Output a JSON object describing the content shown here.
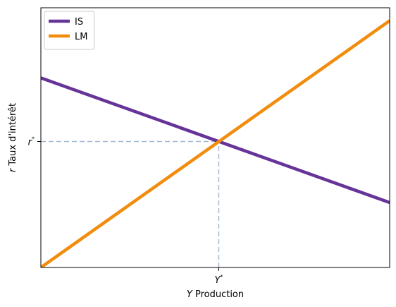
{
  "chart_data": {
    "type": "line",
    "title": "",
    "xlabel": "Y Production",
    "ylabel": "r Taux d'intérêt",
    "xlabel_parts": {
      "symbol": "Y",
      "text": " Production"
    },
    "ylabel_parts": {
      "symbol": "r",
      "text": " Taux d'intérêt"
    },
    "xlim": [
      0,
      1
    ],
    "ylim": [
      0,
      1
    ],
    "grid": false,
    "legend_position": "top-left",
    "series": [
      {
        "name": "IS",
        "color": "#663399",
        "x": [
          0,
          1
        ],
        "y": [
          0.73,
          0.25
        ]
      },
      {
        "name": "LM",
        "color": "#f28c0d",
        "x": [
          0,
          1
        ],
        "y": [
          0.0,
          0.95
        ]
      }
    ],
    "equilibrium": {
      "x": 0.51,
      "y": 0.485,
      "x_tick_label": "Y*",
      "y_tick_label": "r*",
      "x_tick_parts": {
        "base": "Y",
        "sup": "*"
      },
      "y_tick_parts": {
        "base": "r",
        "sup": "*"
      },
      "guide_color": "#a4b9d1"
    }
  }
}
